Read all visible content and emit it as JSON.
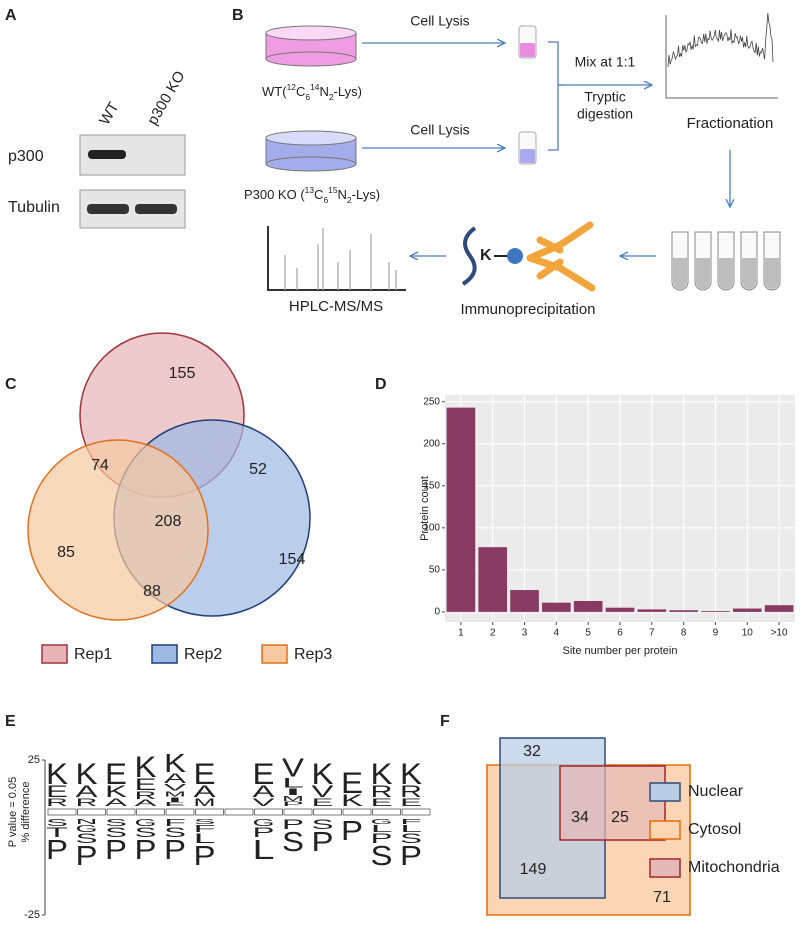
{
  "panel_a": {
    "label": "A",
    "lanes": [
      "WT",
      "p300 KO"
    ],
    "rows": [
      "p300",
      "Tubulin"
    ]
  },
  "panel_b": {
    "label": "B",
    "lysis": [
      "Cell Lysis",
      "Cell Lysis"
    ],
    "wt": [
      {
        "t": "WT("
      },
      {
        "t": "12",
        "pos": "sup"
      },
      {
        "t": "C"
      },
      {
        "t": "6",
        "pos": "sub"
      },
      {
        "t": "14",
        "pos": "sup"
      },
      {
        "t": "N"
      },
      {
        "t": "2",
        "pos": "sub"
      },
      {
        "t": "-Lys)"
      }
    ],
    "ko": [
      {
        "t": "P300 KO ("
      },
      {
        "t": "13",
        "pos": "sup"
      },
      {
        "t": "C"
      },
      {
        "t": "6",
        "pos": "sub"
      },
      {
        "t": "15",
        "pos": "sup"
      },
      {
        "t": "N"
      },
      {
        "t": "2",
        "pos": "sub"
      },
      {
        "t": "-Lys)"
      }
    ],
    "mix": "Mix at 1:1",
    "digest": [
      "Tryptic",
      "digestion"
    ],
    "fractionation": "Fractionation",
    "ip": "Immunoprecipitation",
    "ms": "HPLC-MS/MS",
    "lysine": "K"
  },
  "panel_c": {
    "label": "C",
    "sets": [
      {
        "name": "Rep1",
        "color": "#e8b4b8",
        "stroke": "#a0343a"
      },
      {
        "name": "Rep2",
        "color": "#9db8e3",
        "stroke": "#1f3f7a"
      },
      {
        "name": "Rep3",
        "color": "#f7c9a0",
        "stroke": "#e2701e"
      }
    ],
    "regions": {
      "rep1_only": 155,
      "rep1_rep3": 74,
      "rep1_rep2": 52,
      "all": 208,
      "rep3_only": 85,
      "rep2_only": 154,
      "rep2_rep3": 88
    }
  },
  "chart_data": {
    "type": "bar",
    "label": "D",
    "categories": [
      "1",
      "2",
      "3",
      "4",
      "5",
      "6",
      "7",
      "8",
      "9",
      "10",
      ">10"
    ],
    "values": [
      243,
      77,
      26,
      11,
      13,
      5,
      3,
      2,
      1,
      4,
      8
    ],
    "color": "#883a62",
    "ylim": [
      -12,
      258
    ],
    "yticks": [
      0,
      50,
      100,
      150,
      200,
      250
    ],
    "grid": true,
    "xlabel": "Site number per protein",
    "ylabel": "Protein count"
  },
  "panel_e": {
    "label": "E",
    "ylim": [
      -25,
      25
    ],
    "yticks": [
      25,
      -25
    ],
    "ylabel": [
      "P value = 0.05",
      "% difference"
    ],
    "letter_colors": {
      "K": "#1515e0",
      "R": "#1515e0",
      "E": "#e01515",
      "D": "#e01515",
      "S": "#1a8a1a",
      "T": "#1a8a1a",
      "G": "#1a8a1a",
      "N": "#1a8a1a",
      "A": "#000000",
      "V": "#000000",
      "L": "#000000",
      "I": "#000000",
      "M": "#000000",
      "P": "#000000",
      "F": "#000000"
    },
    "columns": [
      {
        "up": [
          "K",
          "E",
          "R"
        ],
        "down": [
          "S",
          "T",
          "P"
        ]
      },
      {
        "up": [
          "K",
          "A",
          "R"
        ],
        "down": [
          "N",
          "G",
          "S",
          "P"
        ]
      },
      {
        "up": [
          "E",
          "K",
          "A"
        ],
        "down": [
          "S",
          "S",
          "P"
        ]
      },
      {
        "up": [
          "K",
          "E",
          "R",
          "A"
        ],
        "down": [
          "G",
          "S",
          "P"
        ]
      },
      {
        "up": [
          "K",
          "A",
          "V",
          "M",
          "I",
          "E"
        ],
        "down": [
          "F",
          "S",
          "P"
        ]
      },
      {
        "up": [
          "E",
          "A",
          "M"
        ],
        "down": [
          "S",
          "F",
          "L",
          "P"
        ]
      },
      {
        "up": [],
        "down": []
      },
      {
        "up": [
          "E",
          "A",
          "V"
        ],
        "down": [
          "G",
          "P",
          "L"
        ]
      },
      {
        "up": [
          "V",
          "L",
          "I",
          "M",
          "P"
        ],
        "down": [
          "P",
          "S"
        ]
      },
      {
        "up": [
          "K",
          "V",
          "E"
        ],
        "down": [
          "S",
          "P"
        ]
      },
      {
        "up": [
          "E",
          "K"
        ],
        "down": [
          "P"
        ]
      },
      {
        "up": [
          "K",
          "R",
          "E"
        ],
        "down": [
          "G",
          "L",
          "P",
          "S"
        ]
      },
      {
        "up": [
          "K",
          "R",
          "E"
        ],
        "down": [
          "F",
          "L",
          "S",
          "P"
        ]
      }
    ]
  },
  "panel_f": {
    "label": "F",
    "sets": [
      {
        "name": "Nuclear",
        "color": "#b9cde5",
        "stroke": "#2e4d7b"
      },
      {
        "name": "Cytosol",
        "color": "#fcd5b4",
        "stroke": "#e46c0a"
      },
      {
        "name": "Mitochondria",
        "color": "#e6b8b7",
        "stroke": "#a0262b"
      }
    ],
    "regions": {
      "nuclear_only": 32,
      "all": 34,
      "mito_cytosol": 25,
      "nuclear_cytosol": 149,
      "cytosol_only": 71
    }
  }
}
